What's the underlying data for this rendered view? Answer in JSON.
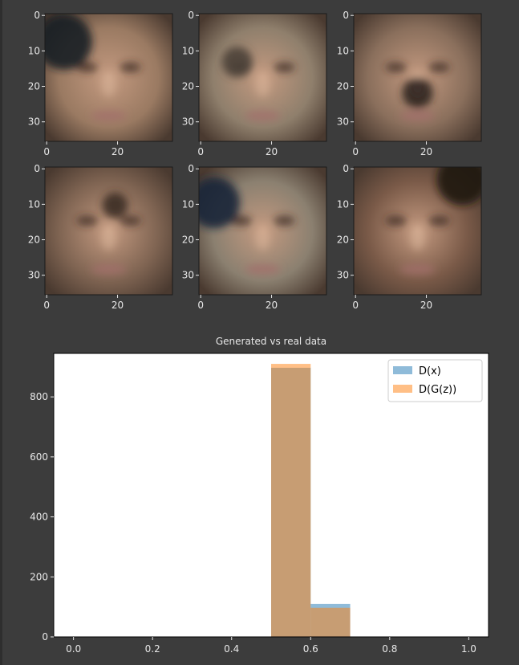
{
  "faces": {
    "x_ticks": [
      "0",
      "20"
    ],
    "y_ticks": [
      "0",
      "10",
      "20",
      "30"
    ],
    "panels": [
      {
        "id": "face-1"
      },
      {
        "id": "face-2"
      },
      {
        "id": "face-3"
      },
      {
        "id": "face-4"
      },
      {
        "id": "face-5"
      },
      {
        "id": "face-6"
      }
    ]
  },
  "chart_data": {
    "type": "bar",
    "title": "Generated vs real data",
    "xlabel": "",
    "ylabel": "",
    "xlim": [
      -0.05,
      1.05
    ],
    "ylim": [
      0,
      945
    ],
    "x_ticks": [
      0.0,
      0.2,
      0.4,
      0.6,
      0.8,
      1.0
    ],
    "x_tick_labels": [
      "0.0",
      "0.2",
      "0.4",
      "0.6",
      "0.8",
      "1.0"
    ],
    "y_ticks": [
      0,
      200,
      400,
      600,
      800
    ],
    "y_tick_labels": [
      "0",
      "200",
      "400",
      "600",
      "800"
    ],
    "legend_position": "top-right",
    "series": [
      {
        "name": "D(x)",
        "color": "#1f77b4",
        "alpha": 0.5,
        "bins": [
          [
            0.5,
            0.6,
            897
          ],
          [
            0.6,
            0.7,
            110
          ]
        ]
      },
      {
        "name": "D(G(z))",
        "color": "#ff7f0e",
        "alpha": 0.5,
        "bins": [
          [
            0.5,
            0.6,
            910
          ],
          [
            0.6,
            0.7,
            97
          ]
        ]
      }
    ],
    "grid": false
  }
}
